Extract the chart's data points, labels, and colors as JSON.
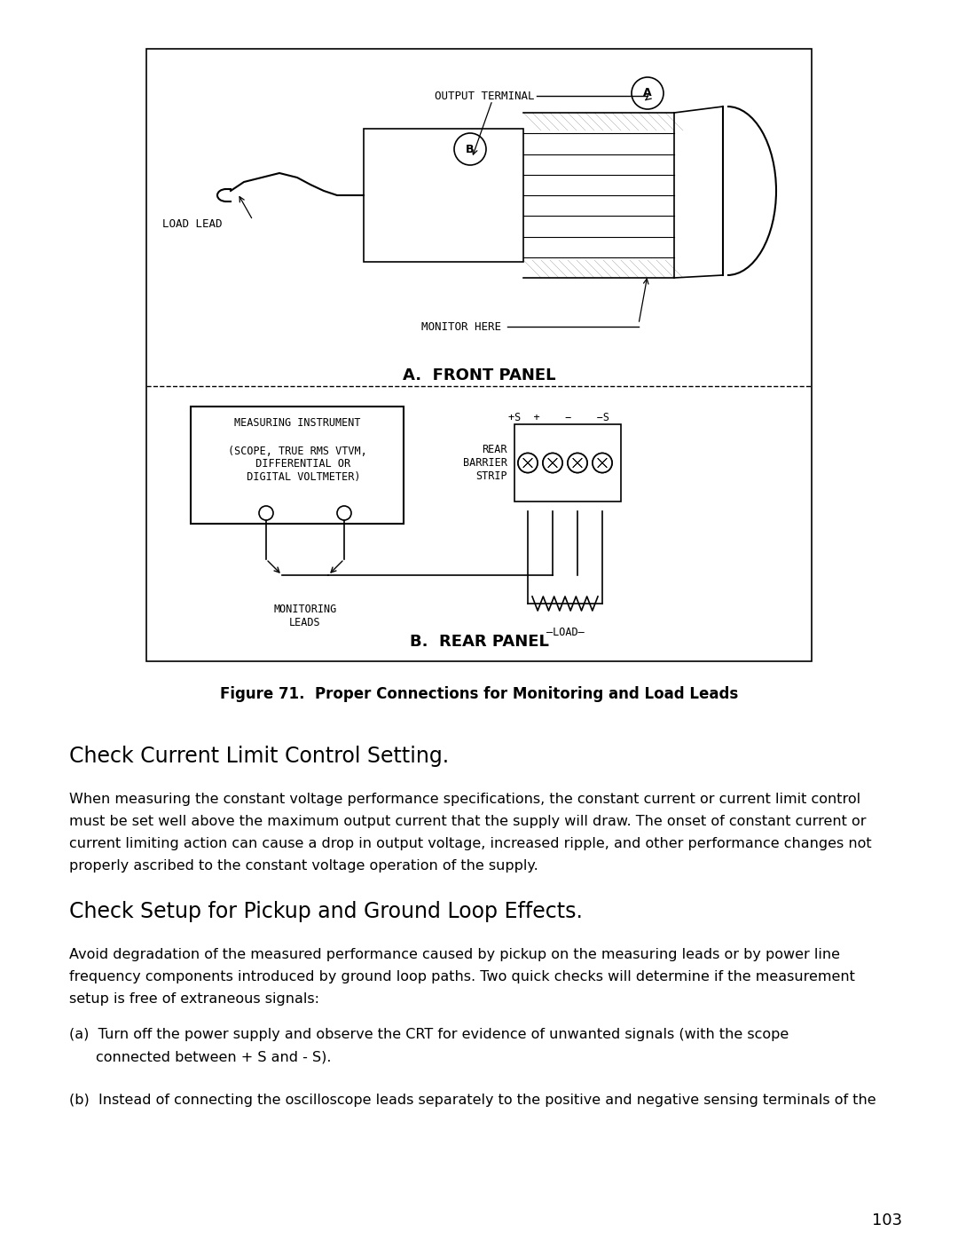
{
  "bg_color": "#ffffff",
  "fig_width": 10.8,
  "fig_height": 13.97,
  "page_number": "103",
  "figure_caption": "Figure 71.  Proper Connections for Monitoring and Load Leads",
  "section1_title": "Check Current Limit Control Setting.",
  "section1_body_lines": [
    "When measuring the constant voltage performance specifications, the constant current or current limit control",
    "must be set well above the maximum output current that the supply will draw. The onset of constant current or",
    "current limiting action can cause a drop in output voltage, increased ripple, and other performance changes not",
    "properly ascribed to the constant voltage operation of the supply."
  ],
  "section2_title": "Check Setup for Pickup and Ground Loop Effects.",
  "section2_body_lines": [
    "Avoid degradation of the measured performance caused by pickup on the measuring leads or by power line",
    "frequency components introduced by ground loop paths. Two quick checks will determine if the measurement",
    "setup is free of extraneous signals:"
  ],
  "item_a_line1": "(a)  Turn off the power supply and observe the CRT for evidence of unwanted signals (with the scope",
  "item_a_line2": "connected between + S and - S).",
  "item_b_line1": "(b)  Instead of connecting the oscilloscope leads separately to the positive and negative sensing terminals of the",
  "front_panel_label": "A.  FRONT PANEL",
  "rear_panel_label": "B.  REAR PANEL",
  "output_terminal_label": "OUTPUT TERMINAL",
  "load_lead_label": "LOAD LEAD",
  "monitor_here_label": "MONITOR HERE",
  "measuring_instrument_label": "MEASURING INSTRUMENT",
  "measuring_instrument_detail": "(SCOPE, TRUE RMS VTVM,\n  DIFFERENTIAL OR\n  DIGITAL VOLTMETER)",
  "monitoring_leads_label": "MONITORING\nLEADS",
  "rear_barrier_label": "+S  +    −    −S",
  "rear_barrier_label2": "REAR\nBARRIER\nSTRIP",
  "load_label": "—LOAD—"
}
